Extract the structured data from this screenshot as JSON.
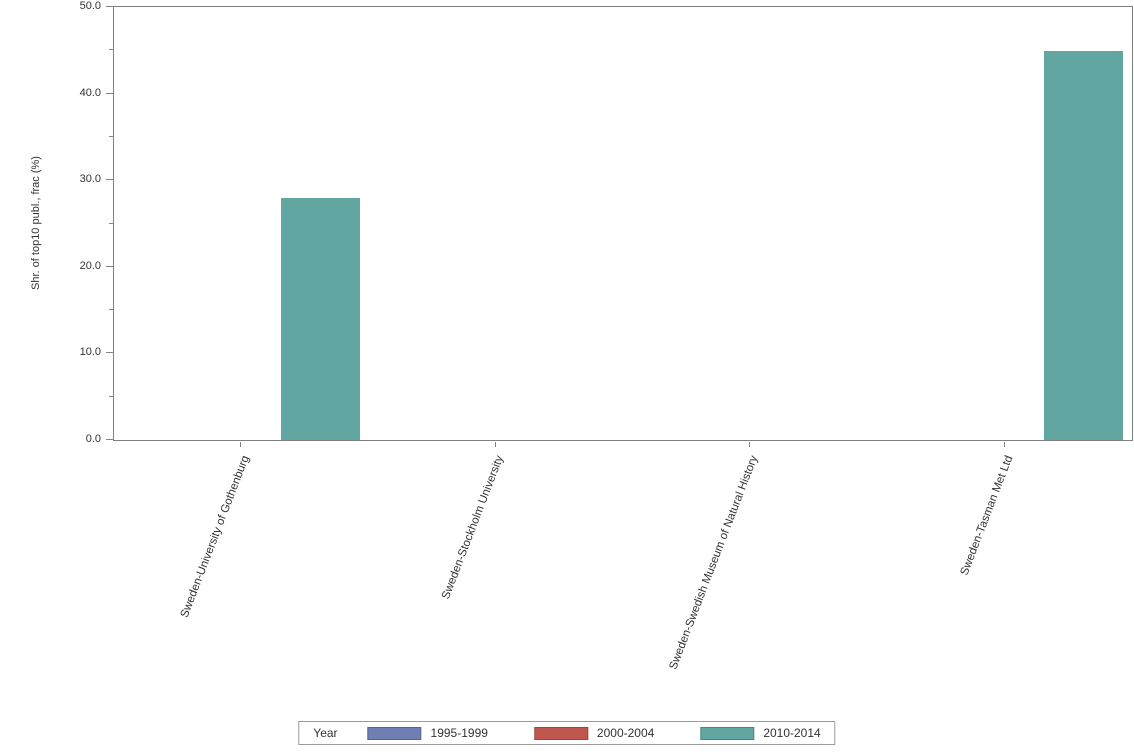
{
  "chart_data": {
    "type": "bar",
    "title": "",
    "categories": [
      "Sweden-University of Gothenburg",
      "Sweden-Stockholm University",
      "Sweden-Swedish Museum of Natural History",
      "Sweden-Tasman Met Ltd"
    ],
    "series": [
      {
        "name": "1995-1999",
        "color": "#6f7eb3",
        "values": [
          0,
          0,
          0,
          0
        ]
      },
      {
        "name": "2000-2004",
        "color": "#c0574f",
        "values": [
          0,
          0,
          0,
          0
        ]
      },
      {
        "name": "2010-2014",
        "color": "#61a6a0",
        "values": [
          28.0,
          0,
          0,
          44.9
        ]
      }
    ],
    "xlabel": "",
    "ylabel": "Shr. of top10 publ., frac (%)",
    "ylim": [
      0,
      50
    ],
    "yticks": [
      0,
      10,
      20,
      30,
      40,
      50
    ],
    "ytick_labels": [
      "0.0",
      "10.0",
      "20.0",
      "30.0",
      "40.0",
      "50.0"
    ],
    "ytick_minor_interval": 5,
    "legend_title": "Year",
    "legend_position": "bottom",
    "grid": false
  }
}
